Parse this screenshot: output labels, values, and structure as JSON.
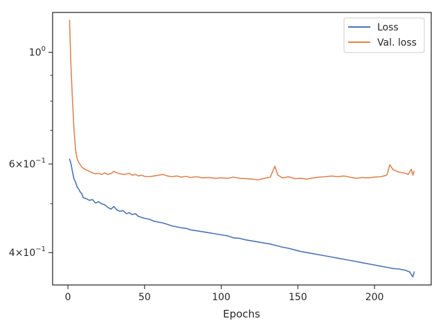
{
  "chart_data": {
    "type": "line",
    "title": "",
    "xlabel": "Epochs",
    "ylabel": "",
    "xlim": [
      -10,
      237
    ],
    "ylim": [
      0.345,
      1.2
    ],
    "yscale": "log",
    "grid": false,
    "legend_position": "top-right",
    "x_ticks": [
      0,
      50,
      100,
      150,
      200
    ],
    "y_major_ticks": [
      {
        "value": 0.4,
        "mantissa": "4",
        "exp": "−1",
        "label": "4 × 10^−1"
      },
      {
        "value": 0.6,
        "mantissa": "6",
        "exp": "−1",
        "label": "6 × 10^−1"
      },
      {
        "value": 1.0,
        "mantissa": "10",
        "exp": "0",
        "label": "10^0"
      }
    ],
    "y_minor_ticks": [
      0.5,
      0.7,
      0.8,
      0.9
    ],
    "series": [
      {
        "name": "Loss",
        "color": "#4c72b0",
        "points": [
          [
            1,
            0.615
          ],
          [
            2,
            0.6
          ],
          [
            3,
            0.578
          ],
          [
            4,
            0.56
          ],
          [
            5,
            0.552
          ],
          [
            6,
            0.54
          ],
          [
            7,
            0.535
          ],
          [
            8,
            0.528
          ],
          [
            9,
            0.524
          ],
          [
            10,
            0.514
          ],
          [
            12,
            0.512
          ],
          [
            14,
            0.508
          ],
          [
            16,
            0.51
          ],
          [
            18,
            0.502
          ],
          [
            20,
            0.505
          ],
          [
            22,
            0.5
          ],
          [
            24,
            0.498
          ],
          [
            26,
            0.492
          ],
          [
            28,
            0.488
          ],
          [
            30,
            0.494
          ],
          [
            32,
            0.486
          ],
          [
            34,
            0.483
          ],
          [
            36,
            0.485
          ],
          [
            38,
            0.478
          ],
          [
            40,
            0.48
          ],
          [
            42,
            0.476
          ],
          [
            44,
            0.478
          ],
          [
            46,
            0.472
          ],
          [
            48,
            0.47
          ],
          [
            50,
            0.468
          ],
          [
            53,
            0.466
          ],
          [
            56,
            0.462
          ],
          [
            59,
            0.46
          ],
          [
            62,
            0.458
          ],
          [
            65,
            0.455
          ],
          [
            68,
            0.452
          ],
          [
            71,
            0.45
          ],
          [
            74,
            0.448
          ],
          [
            77,
            0.447
          ],
          [
            80,
            0.444
          ],
          [
            84,
            0.442
          ],
          [
            88,
            0.44
          ],
          [
            92,
            0.438
          ],
          [
            96,
            0.436
          ],
          [
            100,
            0.434
          ],
          [
            104,
            0.432
          ],
          [
            108,
            0.428
          ],
          [
            112,
            0.427
          ],
          [
            116,
            0.424
          ],
          [
            120,
            0.422
          ],
          [
            124,
            0.42
          ],
          [
            128,
            0.418
          ],
          [
            132,
            0.416
          ],
          [
            136,
            0.413
          ],
          [
            140,
            0.41
          ],
          [
            144,
            0.408
          ],
          [
            148,
            0.405
          ],
          [
            152,
            0.402
          ],
          [
            156,
            0.4
          ],
          [
            160,
            0.398
          ],
          [
            164,
            0.396
          ],
          [
            168,
            0.394
          ],
          [
            172,
            0.392
          ],
          [
            176,
            0.39
          ],
          [
            180,
            0.388
          ],
          [
            184,
            0.386
          ],
          [
            188,
            0.384
          ],
          [
            192,
            0.382
          ],
          [
            196,
            0.38
          ],
          [
            200,
            0.378
          ],
          [
            204,
            0.376
          ],
          [
            208,
            0.374
          ],
          [
            212,
            0.372
          ],
          [
            216,
            0.371
          ],
          [
            220,
            0.369
          ],
          [
            223,
            0.366
          ],
          [
            224,
            0.362
          ],
          [
            225,
            0.358
          ],
          [
            226,
            0.367
          ]
        ]
      },
      {
        "name": "Val. loss",
        "color": "#dd8452",
        "points": [
          [
            1,
            1.16
          ],
          [
            2,
            0.93
          ],
          [
            3,
            0.8
          ],
          [
            4,
            0.7
          ],
          [
            5,
            0.64
          ],
          [
            6,
            0.615
          ],
          [
            7,
            0.605
          ],
          [
            8,
            0.598
          ],
          [
            9,
            0.592
          ],
          [
            10,
            0.588
          ],
          [
            12,
            0.584
          ],
          [
            14,
            0.58
          ],
          [
            16,
            0.576
          ],
          [
            18,
            0.574
          ],
          [
            20,
            0.575
          ],
          [
            22,
            0.572
          ],
          [
            24,
            0.576
          ],
          [
            26,
            0.572
          ],
          [
            28,
            0.574
          ],
          [
            30,
            0.58
          ],
          [
            32,
            0.576
          ],
          [
            34,
            0.574
          ],
          [
            36,
            0.572
          ],
          [
            38,
            0.573
          ],
          [
            40,
            0.575
          ],
          [
            42,
            0.57
          ],
          [
            44,
            0.572
          ],
          [
            46,
            0.568
          ],
          [
            48,
            0.57
          ],
          [
            50,
            0.567
          ],
          [
            53,
            0.566
          ],
          [
            56,
            0.568
          ],
          [
            59,
            0.57
          ],
          [
            62,
            0.572
          ],
          [
            65,
            0.568
          ],
          [
            68,
            0.566
          ],
          [
            71,
            0.568
          ],
          [
            74,
            0.565
          ],
          [
            77,
            0.567
          ],
          [
            80,
            0.564
          ],
          [
            84,
            0.566
          ],
          [
            88,
            0.563
          ],
          [
            92,
            0.564
          ],
          [
            96,
            0.562
          ],
          [
            100,
            0.563
          ],
          [
            104,
            0.562
          ],
          [
            108,
            0.565
          ],
          [
            112,
            0.562
          ],
          [
            116,
            0.561
          ],
          [
            120,
            0.56
          ],
          [
            124,
            0.558
          ],
          [
            128,
            0.562
          ],
          [
            132,
            0.565
          ],
          [
            135,
            0.594
          ],
          [
            137,
            0.57
          ],
          [
            140,
            0.563
          ],
          [
            144,
            0.566
          ],
          [
            148,
            0.561
          ],
          [
            152,
            0.562
          ],
          [
            156,
            0.56
          ],
          [
            160,
            0.563
          ],
          [
            164,
            0.565
          ],
          [
            168,
            0.566
          ],
          [
            172,
            0.568
          ],
          [
            176,
            0.566
          ],
          [
            180,
            0.568
          ],
          [
            184,
            0.565
          ],
          [
            188,
            0.562
          ],
          [
            192,
            0.564
          ],
          [
            196,
            0.563
          ],
          [
            200,
            0.565
          ],
          [
            204,
            0.566
          ],
          [
            208,
            0.57
          ],
          [
            210,
            0.598
          ],
          [
            212,
            0.585
          ],
          [
            216,
            0.578
          ],
          [
            220,
            0.575
          ],
          [
            222,
            0.572
          ],
          [
            224,
            0.586
          ],
          [
            225,
            0.57
          ],
          [
            226,
            0.582
          ]
        ]
      }
    ]
  }
}
